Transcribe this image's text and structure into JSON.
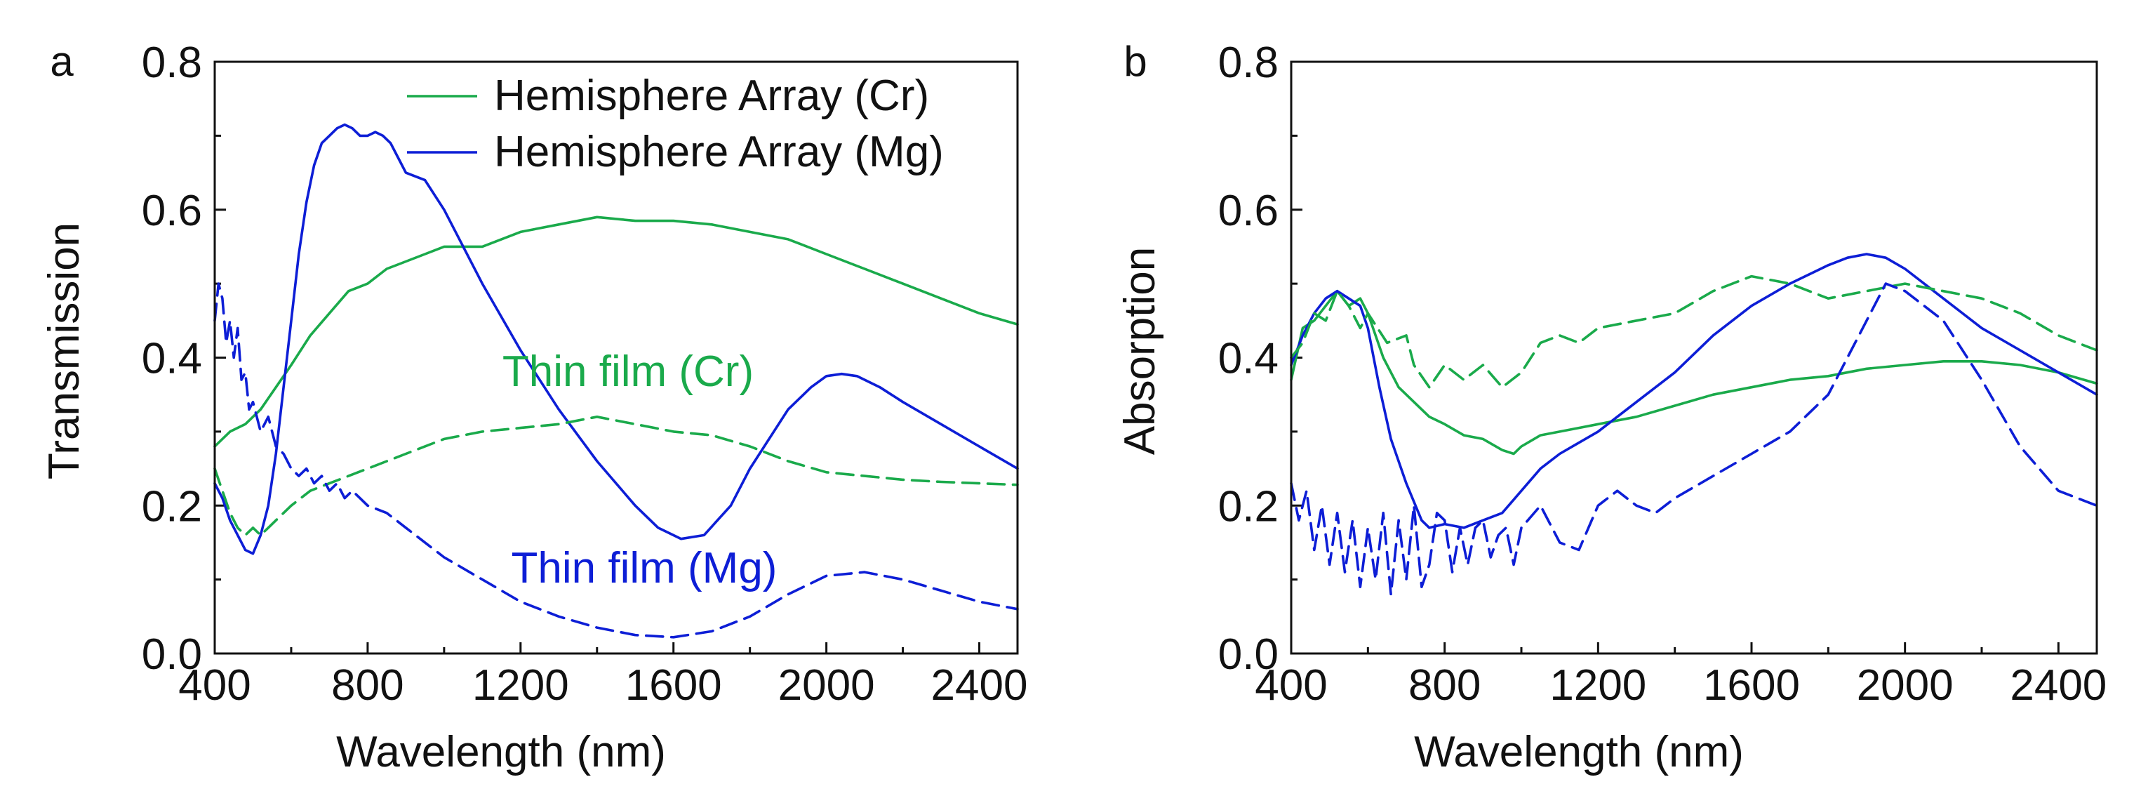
{
  "figure": {
    "colors": {
      "green": "#1aaa4b",
      "blue": "#0d1ed6",
      "axis": "#111111"
    }
  },
  "chart_data": [
    {
      "type": "line",
      "panel_label": "a",
      "title": "",
      "xlabel": "Wavelength (nm)",
      "ylabel": "Transmission",
      "xlim": [
        400,
        2500
      ],
      "ylim": [
        0,
        0.8
      ],
      "xticks": [
        "400",
        "800",
        "1200",
        "1600",
        "2000",
        "2400"
      ],
      "yticks": [
        "0.0",
        "0.2",
        "0.4",
        "0.6",
        "0.8"
      ],
      "legend": [
        "Hemisphere Array (Cr)",
        "Hemisphere Array (Mg)"
      ],
      "annotations": [
        {
          "text": "Thin film (Cr)",
          "color": "#1aaa4b",
          "x": 1610,
          "y": 0.38
        },
        {
          "text": "Thin film (Mg)",
          "color": "#0d1ed6",
          "x": 1640,
          "y": 0.11
        }
      ],
      "series": [
        {
          "name": "Hemisphere Array (Cr)",
          "color": "#1aaa4b",
          "style": "solid",
          "legend": true,
          "x": [
            400,
            440,
            480,
            520,
            560,
            600,
            650,
            700,
            750,
            800,
            850,
            900,
            950,
            1000,
            1100,
            1200,
            1300,
            1400,
            1500,
            1600,
            1700,
            1800,
            1900,
            2000,
            2100,
            2200,
            2300,
            2400,
            2500
          ],
          "y": [
            0.28,
            0.3,
            0.31,
            0.33,
            0.36,
            0.39,
            0.43,
            0.46,
            0.49,
            0.5,
            0.52,
            0.53,
            0.54,
            0.55,
            0.55,
            0.57,
            0.58,
            0.59,
            0.585,
            0.585,
            0.58,
            0.57,
            0.56,
            0.54,
            0.52,
            0.5,
            0.48,
            0.46,
            0.445
          ]
        },
        {
          "name": "Hemisphere Array (Mg)",
          "color": "#0d1ed6",
          "style": "solid",
          "legend": true,
          "x": [
            400,
            420,
            440,
            460,
            480,
            500,
            520,
            540,
            560,
            580,
            600,
            620,
            640,
            660,
            680,
            700,
            720,
            740,
            760,
            780,
            800,
            820,
            840,
            860,
            880,
            900,
            950,
            1000,
            1050,
            1100,
            1200,
            1300,
            1400,
            1500,
            1560,
            1620,
            1680,
            1750,
            1800,
            1900,
            1960,
            2000,
            2040,
            2080,
            2140,
            2200,
            2300,
            2400,
            2500
          ],
          "y": [
            0.23,
            0.21,
            0.18,
            0.16,
            0.14,
            0.135,
            0.16,
            0.2,
            0.27,
            0.36,
            0.45,
            0.54,
            0.61,
            0.66,
            0.69,
            0.7,
            0.71,
            0.715,
            0.71,
            0.7,
            0.7,
            0.705,
            0.7,
            0.69,
            0.67,
            0.65,
            0.64,
            0.6,
            0.55,
            0.5,
            0.41,
            0.33,
            0.26,
            0.2,
            0.17,
            0.155,
            0.16,
            0.2,
            0.25,
            0.33,
            0.36,
            0.375,
            0.378,
            0.375,
            0.36,
            0.34,
            0.31,
            0.28,
            0.25
          ]
        },
        {
          "name": "Thin film (Cr)",
          "color": "#1aaa4b",
          "style": "dashed",
          "legend": false,
          "x": [
            400,
            420,
            440,
            460,
            480,
            500,
            520,
            540,
            560,
            580,
            600,
            650,
            700,
            750,
            800,
            900,
            1000,
            1100,
            1200,
            1300,
            1400,
            1500,
            1600,
            1700,
            1800,
            1900,
            2000,
            2100,
            2200,
            2300,
            2400,
            2500
          ],
          "y": [
            0.25,
            0.22,
            0.19,
            0.17,
            0.16,
            0.17,
            0.16,
            0.17,
            0.18,
            0.19,
            0.2,
            0.22,
            0.23,
            0.24,
            0.25,
            0.27,
            0.29,
            0.3,
            0.305,
            0.31,
            0.32,
            0.31,
            0.3,
            0.295,
            0.28,
            0.26,
            0.245,
            0.24,
            0.235,
            0.232,
            0.23,
            0.228
          ]
        },
        {
          "name": "Thin film (Mg)",
          "color": "#0d1ed6",
          "style": "dashed",
          "legend": false,
          "x": [
            400,
            410,
            420,
            430,
            440,
            450,
            460,
            470,
            480,
            490,
            500,
            520,
            540,
            560,
            580,
            600,
            620,
            640,
            660,
            680,
            700,
            720,
            740,
            760,
            780,
            800,
            850,
            900,
            950,
            1000,
            1100,
            1200,
            1300,
            1400,
            1500,
            1600,
            1700,
            1800,
            1900,
            2000,
            2100,
            2200,
            2300,
            2400,
            2500
          ],
          "y": [
            0.45,
            0.5,
            0.48,
            0.42,
            0.45,
            0.4,
            0.44,
            0.37,
            0.38,
            0.33,
            0.34,
            0.3,
            0.32,
            0.28,
            0.27,
            0.25,
            0.24,
            0.25,
            0.23,
            0.24,
            0.22,
            0.23,
            0.21,
            0.22,
            0.21,
            0.2,
            0.19,
            0.17,
            0.15,
            0.13,
            0.1,
            0.07,
            0.05,
            0.035,
            0.025,
            0.022,
            0.03,
            0.05,
            0.08,
            0.105,
            0.11,
            0.1,
            0.085,
            0.07,
            0.06
          ]
        }
      ]
    },
    {
      "type": "line",
      "panel_label": "b",
      "title": "",
      "xlabel": "Wavelength (nm)",
      "ylabel": "Absorption",
      "xlim": [
        400,
        2500
      ],
      "ylim": [
        0,
        0.8
      ],
      "xticks": [
        "400",
        "800",
        "1200",
        "1600",
        "2000",
        "2400"
      ],
      "yticks": [
        "0.0",
        "0.2",
        "0.4",
        "0.6",
        "0.8"
      ],
      "legend": [],
      "annotations": [],
      "series": [
        {
          "name": "Hemisphere Array (Cr)",
          "color": "#1aaa4b",
          "style": "solid",
          "legend": false,
          "x": [
            400,
            430,
            460,
            490,
            520,
            550,
            580,
            600,
            640,
            680,
            720,
            760,
            800,
            850,
            900,
            950,
            980,
            1000,
            1050,
            1100,
            1150,
            1200,
            1300,
            1400,
            1500,
            1600,
            1700,
            1800,
            1900,
            2000,
            2100,
            2200,
            2300,
            2400,
            2500
          ],
          "y": [
            0.37,
            0.44,
            0.45,
            0.47,
            0.49,
            0.47,
            0.48,
            0.46,
            0.4,
            0.36,
            0.34,
            0.32,
            0.31,
            0.295,
            0.29,
            0.275,
            0.27,
            0.28,
            0.295,
            0.3,
            0.305,
            0.31,
            0.32,
            0.335,
            0.35,
            0.36,
            0.37,
            0.375,
            0.385,
            0.39,
            0.395,
            0.395,
            0.39,
            0.38,
            0.365
          ]
        },
        {
          "name": "Hemisphere Array (Mg)",
          "color": "#0d1ed6",
          "style": "solid",
          "legend": false,
          "x": [
            400,
            430,
            460,
            490,
            520,
            550,
            580,
            600,
            630,
            660,
            700,
            740,
            760,
            800,
            850,
            900,
            950,
            1000,
            1050,
            1100,
            1200,
            1300,
            1400,
            1500,
            1600,
            1700,
            1800,
            1850,
            1900,
            1950,
            2000,
            2100,
            2200,
            2300,
            2400,
            2500
          ],
          "y": [
            0.39,
            0.43,
            0.46,
            0.48,
            0.49,
            0.48,
            0.47,
            0.44,
            0.36,
            0.29,
            0.23,
            0.18,
            0.17,
            0.175,
            0.17,
            0.18,
            0.19,
            0.22,
            0.25,
            0.27,
            0.3,
            0.34,
            0.38,
            0.43,
            0.47,
            0.5,
            0.525,
            0.535,
            0.54,
            0.535,
            0.52,
            0.48,
            0.44,
            0.41,
            0.38,
            0.35
          ]
        },
        {
          "name": "Thin film (Cr)",
          "color": "#1aaa4b",
          "style": "dashed",
          "legend": false,
          "x": [
            400,
            430,
            460,
            490,
            520,
            550,
            580,
            600,
            650,
            700,
            720,
            760,
            800,
            850,
            900,
            950,
            1000,
            1050,
            1100,
            1150,
            1200,
            1300,
            1400,
            1500,
            1600,
            1700,
            1800,
            1900,
            2000,
            2100,
            2200,
            2300,
            2400,
            2500
          ],
          "y": [
            0.4,
            0.42,
            0.46,
            0.45,
            0.49,
            0.47,
            0.44,
            0.46,
            0.42,
            0.43,
            0.39,
            0.36,
            0.39,
            0.37,
            0.39,
            0.36,
            0.38,
            0.42,
            0.43,
            0.42,
            0.44,
            0.45,
            0.46,
            0.49,
            0.51,
            0.5,
            0.48,
            0.49,
            0.5,
            0.49,
            0.48,
            0.46,
            0.43,
            0.41
          ]
        },
        {
          "name": "Thin film (Mg)",
          "color": "#0d1ed6",
          "style": "dashed",
          "legend": false,
          "x": [
            400,
            420,
            440,
            460,
            480,
            500,
            520,
            540,
            560,
            580,
            600,
            620,
            640,
            660,
            680,
            700,
            720,
            740,
            760,
            780,
            800,
            820,
            840,
            860,
            880,
            900,
            920,
            940,
            960,
            980,
            1000,
            1050,
            1100,
            1150,
            1200,
            1250,
            1300,
            1350,
            1400,
            1500,
            1600,
            1700,
            1800,
            1900,
            1950,
            2000,
            2100,
            2200,
            2300,
            2400,
            2500
          ],
          "y": [
            0.23,
            0.18,
            0.22,
            0.14,
            0.2,
            0.12,
            0.19,
            0.11,
            0.18,
            0.09,
            0.17,
            0.1,
            0.19,
            0.08,
            0.18,
            0.1,
            0.2,
            0.09,
            0.12,
            0.19,
            0.18,
            0.11,
            0.17,
            0.12,
            0.17,
            0.18,
            0.13,
            0.16,
            0.17,
            0.12,
            0.17,
            0.2,
            0.15,
            0.14,
            0.2,
            0.22,
            0.2,
            0.19,
            0.21,
            0.24,
            0.27,
            0.3,
            0.35,
            0.45,
            0.5,
            0.49,
            0.45,
            0.37,
            0.28,
            0.22,
            0.2
          ]
        }
      ]
    }
  ]
}
